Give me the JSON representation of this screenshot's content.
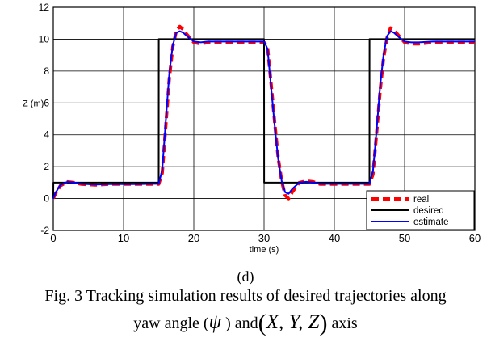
{
  "chart_data": {
    "type": "line",
    "xlabel": "time (s)",
    "ylabel": "Z (m)",
    "xlim": [
      0,
      60
    ],
    "ylim": [
      -2,
      12
    ],
    "xticks": [
      0,
      10,
      20,
      30,
      40,
      50,
      60
    ],
    "yticks": [
      -2,
      0,
      2,
      4,
      6,
      8,
      10,
      12
    ],
    "grid": true,
    "legend_position": "bottom-right",
    "series": [
      {
        "name": "real",
        "color": "#ff0000",
        "style": "dashed",
        "x": [
          0,
          0.3,
          1,
          2,
          3,
          4,
          6,
          8,
          10,
          12,
          14,
          15,
          15.5,
          16,
          16.5,
          17,
          17.5,
          18,
          18.5,
          19,
          20,
          21,
          22,
          24,
          26,
          28,
          30,
          30.5,
          31,
          31.5,
          32,
          32.5,
          33,
          33.5,
          34,
          35,
          36,
          37,
          38,
          40,
          42,
          44,
          45,
          45.5,
          46,
          46.5,
          47,
          47.5,
          48,
          48.5,
          49,
          50,
          51,
          52,
          54,
          56,
          58,
          60
        ],
        "y": [
          0,
          0.3,
          0.8,
          1.05,
          1.0,
          0.9,
          0.85,
          0.9,
          0.9,
          0.9,
          0.9,
          0.9,
          1.6,
          4.5,
          7.5,
          9.5,
          10.5,
          10.8,
          10.6,
          10.3,
          9.8,
          9.7,
          9.8,
          9.8,
          9.8,
          9.8,
          9.8,
          9.5,
          7.2,
          4.8,
          2.6,
          1.1,
          0.2,
          0.0,
          0.4,
          1.0,
          1.1,
          1.05,
          0.9,
          0.9,
          0.9,
          0.9,
          0.9,
          1.5,
          4.0,
          6.7,
          8.8,
          10.1,
          10.7,
          10.6,
          10.3,
          9.8,
          9.7,
          9.7,
          9.8,
          9.8,
          9.8,
          9.8
        ]
      },
      {
        "name": "desired",
        "color": "#000000",
        "style": "solid",
        "x": [
          0,
          0.01,
          15,
          15.01,
          30,
          30.01,
          45,
          45.01,
          60
        ],
        "y": [
          0,
          1,
          1,
          10,
          10,
          1,
          1,
          10,
          10
        ]
      },
      {
        "name": "estimate",
        "color": "#0000ff",
        "style": "solid",
        "x": [
          0,
          0.3,
          1,
          2,
          3,
          4,
          6,
          8,
          10,
          12,
          14,
          15,
          15.5,
          16,
          16.5,
          17,
          17.5,
          18,
          18.5,
          19,
          20,
          21,
          22,
          24,
          26,
          28,
          30,
          30.5,
          31,
          31.5,
          32,
          32.5,
          33,
          33.5,
          34,
          35,
          36,
          37,
          38,
          40,
          42,
          44,
          45,
          45.5,
          46,
          46.5,
          47,
          47.5,
          48,
          48.5,
          49,
          50,
          51,
          52,
          54,
          56,
          58,
          60
        ],
        "y": [
          0,
          0.35,
          0.85,
          1.05,
          1.0,
          0.92,
          0.88,
          0.9,
          0.9,
          0.9,
          0.92,
          0.92,
          1.8,
          4.8,
          7.8,
          9.6,
          10.4,
          10.5,
          10.4,
          10.2,
          9.85,
          9.8,
          9.85,
          9.85,
          9.85,
          9.85,
          9.85,
          9.4,
          7.0,
          4.6,
          2.5,
          1.1,
          0.4,
          0.3,
          0.6,
          1.0,
          1.05,
          1.0,
          0.92,
          0.92,
          0.92,
          0.92,
          0.92,
          1.7,
          4.2,
          7.0,
          9.0,
          10.2,
          10.5,
          10.4,
          10.2,
          9.85,
          9.8,
          9.8,
          9.85,
          9.85,
          9.85,
          9.85
        ]
      }
    ]
  },
  "caption": {
    "panel_label": "(d)",
    "line1": "Fig. 3 Tracking simulation results of desired trajectories along",
    "line2_before": "yaw angle (",
    "line2_symbol": "ψ",
    "line2_middle": " ) and",
    "line2_open": "(",
    "line2_vars": "X, Y, Z",
    "line2_close": ")",
    "line2_after": " axis"
  }
}
